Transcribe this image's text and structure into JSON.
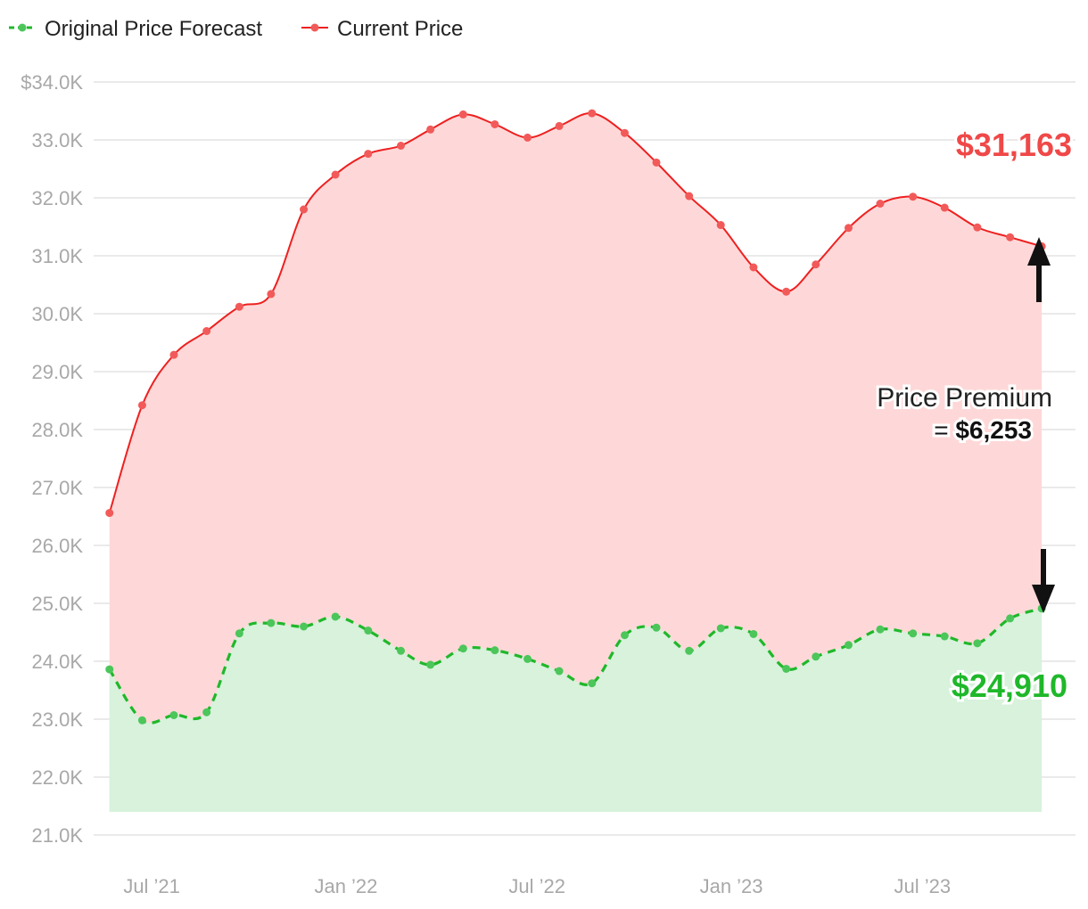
{
  "colors": {
    "forecast_line": "#1fb82a",
    "forecast_fill": "#d8f2dc",
    "forecast_point": "#4cc65a",
    "current_line": "#ee2020",
    "current_fill": "#fed8d8",
    "current_point": "#f25a5a",
    "grid": "#e3e3e3",
    "arrow": "#111111"
  },
  "legend": {
    "forecast_label": "Original Price Forecast",
    "current_label": "Current Price"
  },
  "callouts": {
    "current_end_value": "$31,163",
    "forecast_end_value": "$24,910",
    "premium_title": "Price Premium",
    "premium_equals": "= ",
    "premium_value": "$6,253"
  },
  "chart_data": {
    "type": "area",
    "y_ticks": [
      "$34.0K",
      "33.0K",
      "32.0K",
      "31.0K",
      "30.0K",
      "29.0K",
      "28.0K",
      "27.0K",
      "26.0K",
      "25.0K",
      "24.0K",
      "23.0K",
      "22.0K",
      "21.0K"
    ],
    "y_tick_values": [
      34000,
      33000,
      32000,
      31000,
      30000,
      29000,
      28000,
      27000,
      26000,
      25000,
      24000,
      23000,
      22000,
      21000
    ],
    "ylim": [
      21000,
      34000
    ],
    "x_ticks": [
      "Jul ’21",
      "Jan ’22",
      "Jul ’22",
      "Jan ’23",
      "Jul ’23"
    ],
    "x_tick_dates": [
      "2021-07-01",
      "2022-01-01",
      "2022-07-01",
      "2023-01-01",
      "2023-07-01"
    ],
    "x_range": [
      "2021-05-07",
      "2023-11-23"
    ],
    "area_baseline": 21400,
    "grid": true,
    "legend_position": "top-left",
    "x": [
      "2021-05-22",
      "2021-06-22",
      "2021-07-22",
      "2021-08-22",
      "2021-09-22",
      "2021-10-22",
      "2021-11-22",
      "2021-12-22",
      "2022-01-22",
      "2022-02-22",
      "2022-03-22",
      "2022-04-22",
      "2022-05-22",
      "2022-06-22",
      "2022-07-22",
      "2022-08-22",
      "2022-09-22",
      "2022-10-22",
      "2022-11-22",
      "2022-12-22",
      "2023-01-22",
      "2023-02-22",
      "2023-03-22",
      "2023-04-22",
      "2023-05-22",
      "2023-06-22",
      "2023-07-22",
      "2023-08-22",
      "2023-09-22",
      "2023-10-22"
    ],
    "series": [
      {
        "name": "Original Price Forecast",
        "style": "dashed",
        "values": [
          23860,
          22980,
          23070,
          23120,
          24480,
          24660,
          24600,
          24770,
          24530,
          24180,
          23940,
          24220,
          24190,
          24040,
          23830,
          23620,
          24450,
          24580,
          24180,
          24570,
          24470,
          23870,
          24080,
          24280,
          24550,
          24480,
          24430,
          24310,
          24740,
          24910
        ]
      },
      {
        "name": "Current Price",
        "style": "solid",
        "values": [
          26560,
          28420,
          29290,
          29700,
          30120,
          30340,
          31800,
          32400,
          32760,
          32900,
          33180,
          33440,
          33270,
          33040,
          33240,
          33460,
          33120,
          32610,
          32030,
          31530,
          30800,
          30380,
          30850,
          31480,
          31900,
          32020,
          31830,
          31490,
          31320,
          31163
        ]
      }
    ]
  }
}
